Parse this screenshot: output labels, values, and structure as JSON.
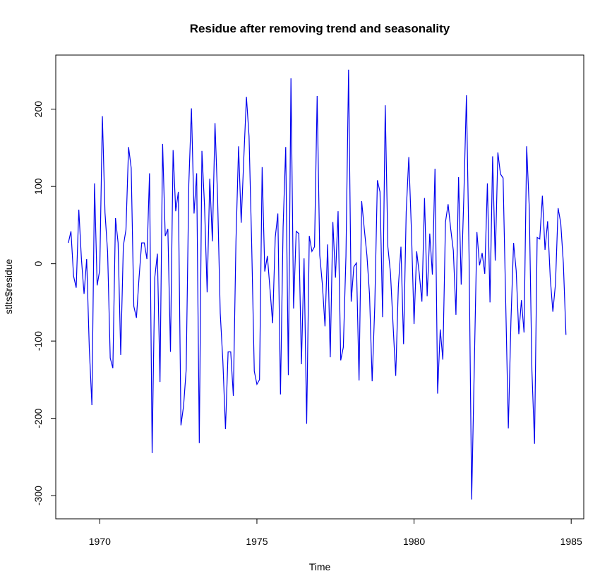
{
  "chart_data": {
    "type": "line",
    "title": "Residue after removing trend and seasonality",
    "xlabel": "Time",
    "ylabel": "stlts$residue",
    "xlim": [
      1968.6,
      1985.4
    ],
    "ylim": [
      -330,
      270
    ],
    "x_ticks": [
      1970,
      1975,
      1980,
      1985
    ],
    "y_ticks": [
      -300,
      -200,
      -100,
      0,
      100,
      200
    ],
    "x_start": 1969.0,
    "x_step": 0.0833333,
    "line_color": "#0000ee",
    "grid": false,
    "series": [
      {
        "values": [
          27,
          42,
          -16,
          -31,
          70,
          6,
          -39,
          6,
          -109,
          -183,
          104,
          -28,
          -8,
          191,
          66,
          15,
          -122,
          -135,
          59,
          27,
          -118,
          23,
          44,
          151,
          124,
          -55,
          -70,
          -18,
          27,
          27,
          6,
          117,
          -245,
          -18,
          13,
          -153,
          155,
          36,
          45,
          -114,
          147,
          68,
          93,
          -209,
          -184,
          -137,
          103,
          201,
          65,
          117,
          -232,
          146,
          75,
          -37,
          110,
          29,
          182,
          84,
          -64,
          -126,
          -214,
          -114,
          -114,
          -171,
          29,
          152,
          53,
          137,
          216,
          165,
          26,
          -139,
          -156,
          -150,
          125,
          -10,
          10,
          -33,
          -77,
          34,
          65,
          -169,
          47,
          151,
          -144,
          240,
          -58,
          42,
          39,
          -130,
          7,
          -207,
          36,
          16,
          22,
          217,
          11,
          -27,
          -81,
          25,
          -121,
          54,
          -18,
          68,
          -125,
          -108,
          10,
          251,
          -49,
          -4,
          1,
          -151,
          81,
          45,
          11,
          -40,
          -152,
          -55,
          108,
          93,
          -69,
          205,
          22,
          -12,
          -80,
          -145,
          -30,
          22,
          -104,
          67,
          138,
          43,
          -78,
          16,
          -13,
          -49,
          85,
          -42,
          39,
          -14,
          123,
          -168,
          -85,
          -124,
          54,
          77,
          45,
          17,
          -66,
          112,
          -27,
          86,
          218,
          12,
          -305,
          -133,
          41,
          -2,
          14,
          -13,
          104,
          -50,
          139,
          4,
          144,
          116,
          111,
          -50,
          -213,
          -74,
          27,
          -9,
          -91,
          -47,
          -89,
          152,
          72,
          -138,
          -233,
          34,
          32,
          88,
          18,
          55,
          -18,
          -62,
          -26,
          72,
          53,
          1,
          -92
        ]
      }
    ]
  }
}
